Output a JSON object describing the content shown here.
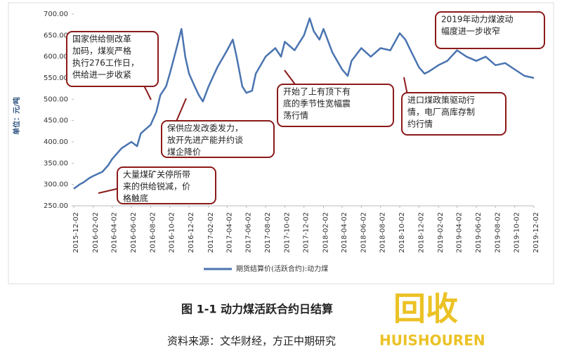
{
  "chart_data": {
    "type": "line",
    "y_label": "单位：元/吨",
    "legend": "期货结算价(活跃合约):动力煤",
    "color": "#4a74b0",
    "x": [
      "2015-12-02",
      "2015-12-20",
      "2016-01-02",
      "2016-01-20",
      "2016-02-02",
      "2016-03-02",
      "2016-03-20",
      "2016-04-02",
      "2016-05-02",
      "2016-06-02",
      "2016-06-20",
      "2016-07-02",
      "2016-08-02",
      "2016-08-20",
      "2016-09-02",
      "2016-09-20",
      "2016-10-02",
      "2016-10-20",
      "2016-11-08",
      "2016-11-20",
      "2016-12-02",
      "2016-12-20",
      "2017-01-02",
      "2017-01-15",
      "2017-02-02",
      "2017-03-02",
      "2017-04-02",
      "2017-04-20",
      "2017-05-02",
      "2017-05-20",
      "2017-06-02",
      "2017-06-20",
      "2017-07-02",
      "2017-08-02",
      "2017-09-02",
      "2017-09-20",
      "2017-10-02",
      "2017-11-02",
      "2017-12-02",
      "2017-12-20",
      "2018-01-02",
      "2018-01-20",
      "2018-02-02",
      "2018-03-02",
      "2018-04-02",
      "2018-04-20",
      "2018-05-02",
      "2018-06-02",
      "2018-07-02",
      "2018-08-02",
      "2018-09-02",
      "2018-10-02",
      "2018-10-20",
      "2018-11-02",
      "2018-12-02",
      "2018-12-20",
      "2019-01-02",
      "2019-02-02",
      "2019-03-02",
      "2019-04-02",
      "2019-05-02",
      "2019-06-02",
      "2019-07-02",
      "2019-08-02",
      "2019-09-02",
      "2019-10-02",
      "2019-11-02",
      "2019-12-02"
    ],
    "values": [
      290,
      300,
      305,
      315,
      320,
      330,
      345,
      360,
      385,
      400,
      390,
      420,
      440,
      470,
      510,
      530,
      560,
      610,
      665,
      600,
      560,
      530,
      510,
      495,
      530,
      575,
      615,
      640,
      600,
      530,
      515,
      520,
      560,
      600,
      620,
      600,
      635,
      615,
      650,
      690,
      660,
      640,
      665,
      610,
      570,
      555,
      590,
      620,
      600,
      620,
      615,
      655,
      640,
      620,
      575,
      560,
      565,
      580,
      590,
      615,
      600,
      590,
      600,
      580,
      585,
      570,
      555,
      550
    ],
    "xlim": [
      "2015-12-02",
      "2019-12-02"
    ],
    "xticks": [
      "2015-12-02",
      "2016-02-02",
      "2016-04-02",
      "2016-06-02",
      "2016-08-02",
      "2016-10-02",
      "2016-12-02",
      "2017-02-02",
      "2017-04-02",
      "2017-06-02",
      "2017-08-02",
      "2017-10-02",
      "2017-12-02",
      "2018-02-02",
      "2018-04-02",
      "2018-06-02",
      "2018-08-02",
      "2018-10-02",
      "2018-12-02",
      "2019-02-02",
      "2019-04-02",
      "2019-06-02",
      "2019-08-02",
      "2019-10-02",
      "2019-12-02"
    ],
    "ylim": [
      250,
      700
    ],
    "yticks": [
      {
        "value": 250,
        "label": "250.00"
      },
      {
        "value": 300,
        "label": "300.00"
      },
      {
        "value": 350,
        "label": "350.00"
      },
      {
        "value": 400,
        "label": "400.00"
      },
      {
        "value": 450,
        "label": "450.00"
      },
      {
        "value": 500,
        "label": "500.00"
      },
      {
        "value": 550,
        "label": "550.00"
      },
      {
        "value": 600,
        "label": "600.00"
      },
      {
        "value": 650,
        "label": "650.00"
      },
      {
        "value": 700,
        "label": "700.00"
      }
    ],
    "annotations": [
      {
        "lines": [
          "国家供给侧改革",
          "加码，煤炭严格",
          "执行276工作日，",
          "供给进一步收紧"
        ]
      },
      {
        "lines": [
          "2019年动力煤波动",
          "幅度进一步收窄"
        ]
      },
      {
        "lines": [
          "开始了上有顶下有",
          "底的季节性宽幅震",
          "荡行情"
        ]
      },
      {
        "lines": [
          "保供应发改委发力，",
          "放开先进产能并约谈",
          "煤企降价"
        ]
      },
      {
        "lines": [
          "进口煤政策驱动行",
          "情，电厂高库存制",
          "约行情"
        ]
      },
      {
        "lines": [
          "大量煤矿关停所带",
          "来的供给锐减，价",
          "格触底"
        ]
      }
    ]
  },
  "caption": "图 1-1 动力煤活跃合约日结算",
  "source": "资料来源：文华财经，方正中期研究",
  "watermark": [
    "回收",
    "HUISHOUREN"
  ]
}
